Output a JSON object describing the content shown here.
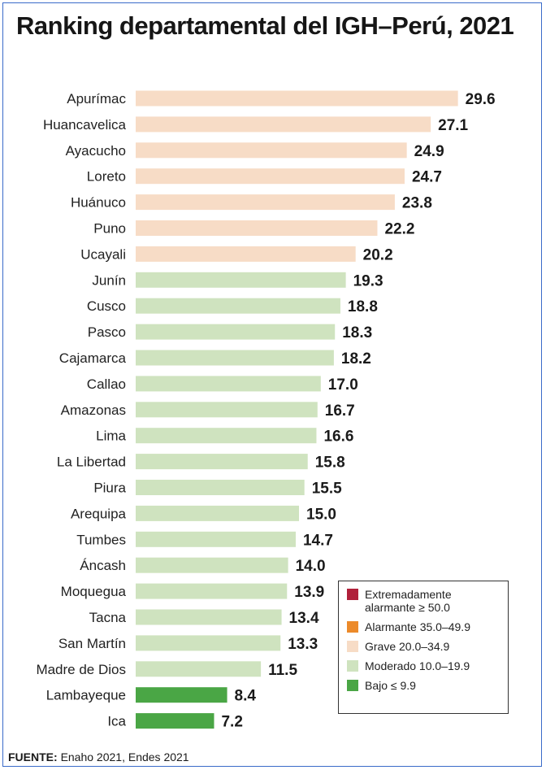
{
  "chart_data": {
    "type": "bar",
    "orientation": "horizontal",
    "title": "Ranking departamental del IGH–Perú, 2021",
    "categories": [
      "Apurímac",
      "Huancavelica",
      "Ayacucho",
      "Loreto",
      "Huánuco",
      "Puno",
      "Ucayali",
      "Junín",
      "Cusco",
      "Pasco",
      "Cajamarca",
      "Callao",
      "Amazonas",
      "Lima",
      "La Libertad",
      "Piura",
      "Arequipa",
      "Tumbes",
      "Áncash",
      "Moquegua",
      "Tacna",
      "San Martín",
      "Madre de Dios",
      "Lambayeque",
      "Ica"
    ],
    "values": [
      29.6,
      27.1,
      24.9,
      24.7,
      23.8,
      22.2,
      20.2,
      19.3,
      18.8,
      18.3,
      18.2,
      17.0,
      16.7,
      16.6,
      15.8,
      15.5,
      15.0,
      14.7,
      14.0,
      13.9,
      13.4,
      13.3,
      11.5,
      8.4,
      7.2
    ],
    "value_labels": [
      "29.6",
      "27.1",
      "24.9",
      "24.7",
      "23.8",
      "22.2",
      "20.2",
      "19.3",
      "18.8",
      "18.3",
      "18.2",
      "17.0",
      "16.7",
      "16.6",
      "15.8",
      "15.5",
      "15.0",
      "14.7",
      "14.0",
      "13.9",
      "13.4",
      "13.3",
      "11.5",
      "8.4",
      "7.2"
    ],
    "levels": [
      {
        "label": "Extremadamente alarmante ≥ 50.0",
        "min": 50.0,
        "color": "#b0203a"
      },
      {
        "label": "Alarmante 35.0–49.9",
        "min": 35.0,
        "color": "#ec8a2a"
      },
      {
        "label": "Grave 20.0–34.9",
        "min": 20.0,
        "color": "#f7dcc6"
      },
      {
        "label": "Moderado 10.0–19.9",
        "min": 10.0,
        "color": "#cfe3bf"
      },
      {
        "label": "Bajo ≤ 9.9",
        "min": 0,
        "color": "#4aa645"
      }
    ],
    "legend_position": "bottom-right",
    "grid": false
  },
  "source": {
    "label": "FUENTE:",
    "text": "Enaho 2021, Endes 2021"
  }
}
